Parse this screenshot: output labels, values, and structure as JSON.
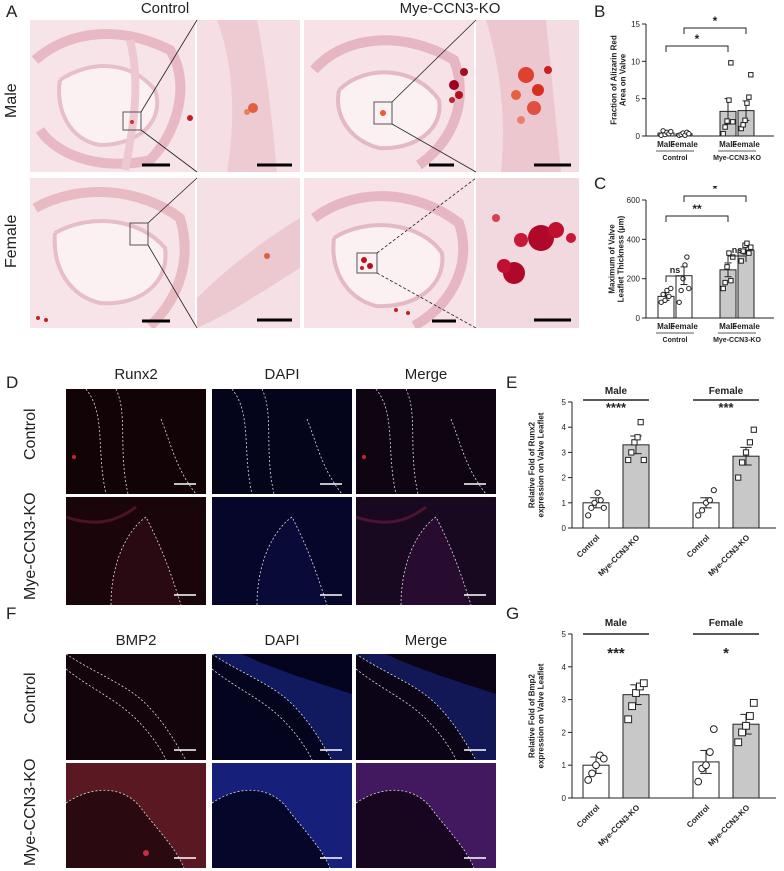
{
  "panel_letters": {
    "a": "A",
    "b": "B",
    "c": "C",
    "d": "D",
    "e": "E",
    "f": "F",
    "g": "G"
  },
  "panelA": {
    "col_control": "Control",
    "col_ko": "Mye-CCN3-KO",
    "row_male": "Male",
    "row_female": "Female"
  },
  "panelD": {
    "col1": "Runx2",
    "col2": "DAPI",
    "col3": "Merge",
    "row1": "Control",
    "row2": "Mye-CCN3-KO"
  },
  "panelF": {
    "col1": "BMP2",
    "col2": "DAPI",
    "col3": "Merge",
    "row1": "Control",
    "row2": "Mye-CCN3-KO"
  },
  "colors": {
    "ko_bar": "#c8c8c8",
    "control_bar": "#ffffff",
    "axis": "#222222"
  },
  "chart_data": [
    {
      "id": "B",
      "type": "bar",
      "ylabel": "Fraction of Alizarin Red Area on Valve",
      "ylim": [
        0,
        15
      ],
      "yticks": [
        0,
        5,
        10,
        15
      ],
      "categories": [
        "Male",
        "Female",
        "Male",
        "Female"
      ],
      "groups": [
        "Control",
        "Mye-CCN3-KO"
      ],
      "values": [
        0.4,
        0.3,
        3.3,
        3.4
      ],
      "errors": [
        0.3,
        0.2,
        1.7,
        1.3
      ],
      "points": [
        [
          0.1,
          0.7,
          0.2,
          0.5,
          0.3,
          0.6
        ],
        [
          0.1,
          0.2,
          0.4,
          0.1,
          0.5,
          0.3
        ],
        [
          0.3,
          1.2,
          2.0,
          4.8,
          9.8,
          1.9
        ],
        [
          1.0,
          1.5,
          2.1,
          4.4,
          5.2,
          8.2
        ]
      ],
      "significance": [
        {
          "from": 0,
          "to": 2,
          "label": "*"
        },
        {
          "from": 1,
          "to": 3,
          "label": "*"
        }
      ]
    },
    {
      "id": "C",
      "type": "bar",
      "ylabel": "Maximum of Valve Leaflet Thickness (μm)",
      "ylim": [
        0,
        600
      ],
      "yticks": [
        0,
        200,
        400,
        600
      ],
      "categories": [
        "Male",
        "Female",
        "Male",
        "Female"
      ],
      "groups": [
        "Control",
        "Mye-CCN3-KO"
      ],
      "values": [
        110,
        215,
        245,
        345
      ],
      "errors": [
        20,
        45,
        35,
        20
      ],
      "points": [
        [
          80,
          120,
          90,
          140,
          110,
          150
        ],
        [
          80,
          140,
          200,
          270,
          310,
          150
        ],
        [
          150,
          180,
          260,
          330,
          190,
          310
        ],
        [
          290,
          340,
          370,
          380,
          330,
          360
        ]
      ],
      "significance": [
        {
          "from": 0,
          "to": 1,
          "label": "ns"
        },
        {
          "from": 2,
          "to": 3,
          "label": "ns"
        },
        {
          "from": 0,
          "to": 2,
          "label": "**"
        },
        {
          "from": 1,
          "to": 3,
          "label": "*"
        }
      ]
    },
    {
      "id": "E",
      "type": "bar",
      "ylabel": "Relative Fold of Runx2 expression on Valve Leaflet",
      "ylim": [
        0,
        5
      ],
      "yticks": [
        0,
        1,
        2,
        3,
        4,
        5
      ],
      "categories": [
        "Control",
        "Mye-CCN3-KO",
        "Control",
        "Mye-CCN3-KO"
      ],
      "groups": [
        "Male",
        "Female"
      ],
      "values": [
        1.0,
        3.3,
        1.0,
        2.85
      ],
      "errors": [
        0.2,
        0.35,
        0.2,
        0.35
      ],
      "points": [
        [
          0.5,
          0.8,
          1.0,
          1.4,
          1.1,
          0.8
        ],
        [
          2.7,
          3.0,
          3.4,
          3.6,
          4.2,
          2.7
        ],
        [
          0.5,
          0.7,
          1.0,
          1.1,
          1.5
        ],
        [
          2.0,
          2.6,
          3.0,
          3.4,
          3.9
        ]
      ],
      "significance": [
        {
          "group": 0,
          "label": "****"
        },
        {
          "group": 1,
          "label": "***"
        }
      ]
    },
    {
      "id": "G",
      "type": "bar",
      "ylabel": "Relative Fold of Bmp2 expression on Valve Leaflet",
      "ylim": [
        0,
        5
      ],
      "yticks": [
        0,
        1,
        2,
        3,
        4,
        5
      ],
      "categories": [
        "Control",
        "Mye-CCN3-KO",
        "Control",
        "Mye-CCN3-KO"
      ],
      "groups": [
        "Male",
        "Female"
      ],
      "values": [
        1.0,
        3.15,
        1.1,
        2.25
      ],
      "errors": [
        0.25,
        0.3,
        0.35,
        0.3
      ],
      "points": [
        [
          0.55,
          0.75,
          1.0,
          1.3,
          1.2
        ],
        [
          2.4,
          2.8,
          3.2,
          3.4,
          3.5
        ],
        [
          0.5,
          0.9,
          1.0,
          1.4,
          2.1
        ],
        [
          1.7,
          2.0,
          2.2,
          2.5,
          2.9
        ]
      ],
      "significance": [
        {
          "group": 0,
          "label": "***"
        },
        {
          "group": 1,
          "label": "*"
        }
      ]
    }
  ]
}
